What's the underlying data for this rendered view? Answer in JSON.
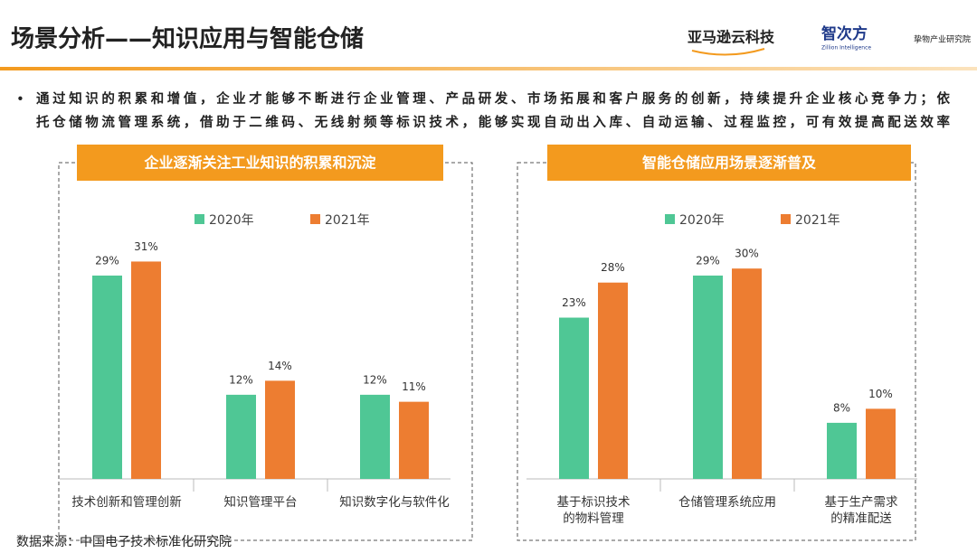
{
  "header": {
    "title": "场景分析——知识应用与智能仓储",
    "logos": [
      "亚马逊云科技",
      "智次方",
      "Zillion Intelligence",
      "挚物产业研究院"
    ]
  },
  "bullet": [
    "通过知识的积累和增值，企业才能够不断进行企业管理、产品研发、市场拓展和客户服务的创新，持续提升企业核心竞争力；依",
    "托仓储物流管理系统，借助于二维码、无线射频等标识技术，能够实现自动出入库、自动运输、过程监控，可有效提高配送效率"
  ],
  "source": "数据来源：中国电子技术标准化研究院",
  "chart_data": [
    {
      "type": "bar",
      "title": "企业逐渐关注工业知识的积累和沉淀",
      "legend": "top",
      "categories": [
        [
          "技术创新和管理创新"
        ],
        [
          "知识管理平台"
        ],
        [
          "知识数字化与软件化"
        ]
      ],
      "series": [
        {
          "name": "2020年",
          "color": "#4fc795",
          "values": [
            29,
            12,
            12
          ],
          "value_labels": [
            "29%",
            "12%",
            "12%"
          ]
        },
        {
          "name": "2021年",
          "color": "#ed7d31",
          "values": [
            31,
            14,
            11
          ],
          "value_labels": [
            "31%",
            "14%",
            "11%"
          ]
        }
      ]
    },
    {
      "type": "bar",
      "title": "智能仓储应用场景逐渐普及",
      "legend": "top",
      "categories": [
        [
          "基于标识技术",
          "的物料管理"
        ],
        [
          "仓储管理系统应用"
        ],
        [
          "基于生产需求",
          "的精准配送"
        ]
      ],
      "series": [
        {
          "name": "2020年",
          "color": "#4fc795",
          "values": [
            23,
            29,
            8
          ],
          "value_labels": [
            "23%",
            "29%",
            "8%"
          ]
        },
        {
          "name": "2021年",
          "color": "#ed7d31",
          "values": [
            28,
            30,
            10
          ],
          "value_labels": [
            "28%",
            "30%",
            "10%"
          ]
        }
      ]
    }
  ]
}
